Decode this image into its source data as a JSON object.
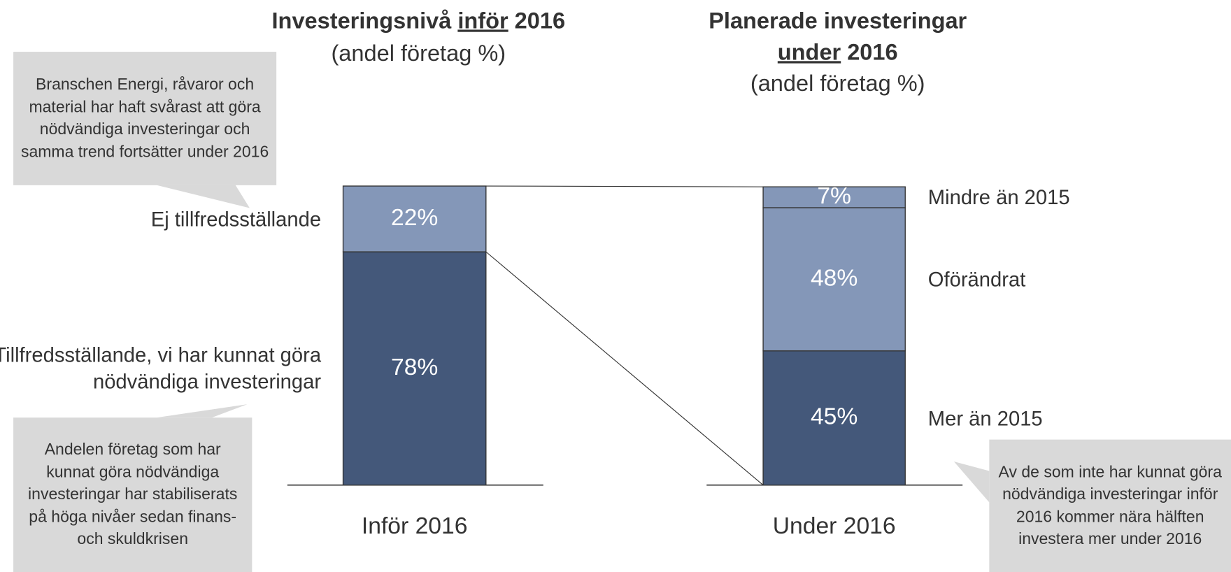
{
  "chart_data": [
    {
      "type": "stacked-bar",
      "title_parts": [
        "Investeringsnivå",
        "inför",
        "2016"
      ],
      "title_underline": 1,
      "subtitle": "(andel företag %)",
      "categories": [
        "Inför 2016"
      ],
      "ylim": [
        0,
        100
      ],
      "series": [
        {
          "name": "Tillfredsställande, vi har kunnat göra nödvändiga investeringar",
          "color": "#44587a",
          "values": [
            78
          ],
          "value_labels": [
            "78%"
          ]
        },
        {
          "name": "Ej tillfredsställande",
          "color": "#8497b8",
          "values": [
            22
          ],
          "value_labels": [
            "22%"
          ]
        }
      ],
      "annotations": [
        "Branschen Energi, råvaror och material har haft svårast att göra nödvändiga investeringar och samma trend fortsätter under 2016",
        "Andelen företag som har kunnat göra nödvändiga investeringar har stabiliserats på höga nivåer sedan finans- och skuldkrisen"
      ]
    },
    {
      "type": "stacked-bar",
      "title_parts": [
        "Planerade investeringar",
        "under",
        "2016"
      ],
      "title_underline": 1,
      "subtitle": "(andel företag %)",
      "categories": [
        "Under 2016"
      ],
      "ylim": [
        0,
        100
      ],
      "series": [
        {
          "name": "Mer än 2015",
          "color": "#44587a",
          "values": [
            45
          ],
          "value_labels": [
            "45%"
          ]
        },
        {
          "name": "Oförändrat",
          "color": "#8497b8",
          "values": [
            48
          ],
          "value_labels": [
            "48%"
          ]
        },
        {
          "name": "Mindre än 2015",
          "color": "#8497b8",
          "values": [
            7
          ],
          "value_labels": [
            "7%"
          ]
        }
      ],
      "annotations": [
        "Av de som inte har kunnat göra nödvändiga investeringar inför 2016 kommer nära hälften investera mer under 2016"
      ]
    }
  ]
}
